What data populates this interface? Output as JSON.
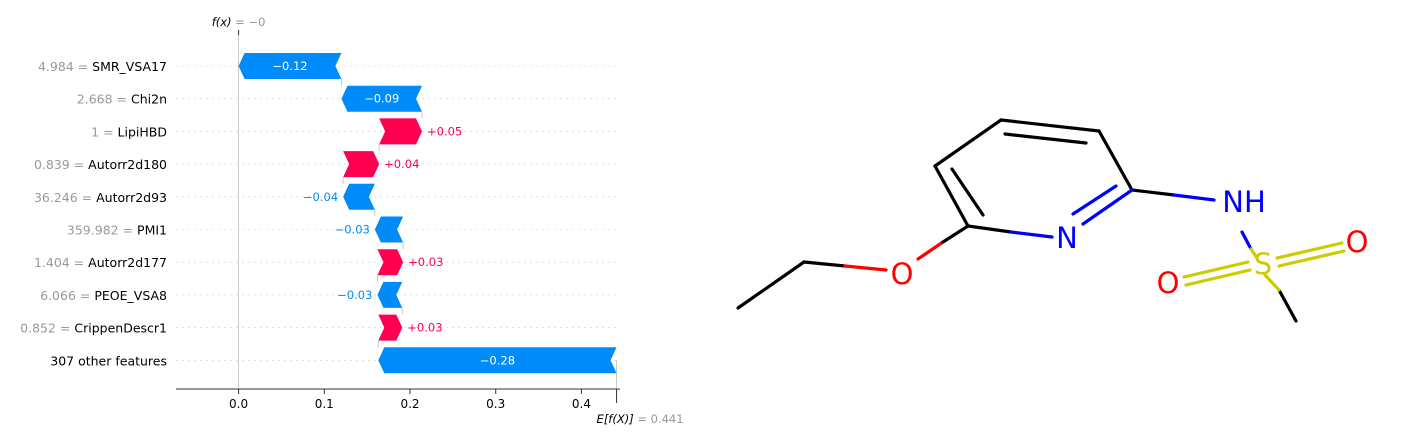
{
  "chart_data": {
    "type": "bar",
    "subtype": "shap-waterfall",
    "top_label": {
      "prefix": "f(x)",
      "suffix": " = −0"
    },
    "bottom_label": {
      "prefix": "E[f(X)]",
      "suffix": " = 0.441"
    },
    "fx": 0.0,
    "base_value": 0.441,
    "xlim": [
      -0.073,
      0.445
    ],
    "xticks": [
      0.0,
      0.1,
      0.2,
      0.3,
      0.4
    ],
    "xtick_labels": [
      "0.0",
      "0.1",
      "0.2",
      "0.3",
      "0.4"
    ],
    "features": [
      {
        "value_text": "4.984",
        "name": "SMR_VSA17",
        "shap": -0.12,
        "label": "−0.12",
        "start": 0.12,
        "end": 0.0
      },
      {
        "value_text": "2.668",
        "name": "Chi2n",
        "shap": -0.09,
        "label": "−0.09",
        "start": 0.214,
        "end": 0.12
      },
      {
        "value_text": "1",
        "name": "LipiHBD",
        "shap": 0.05,
        "label": "+0.05",
        "start": 0.164,
        "end": 0.214
      },
      {
        "value_text": "0.839",
        "name": "Autorr2d180",
        "shap": 0.04,
        "label": "+0.04",
        "start": 0.122,
        "end": 0.164
      },
      {
        "value_text": "36.246",
        "name": "Autorr2d93",
        "shap": -0.04,
        "label": "−0.04",
        "start": 0.159,
        "end": 0.122
      },
      {
        "value_text": "359.982",
        "name": "PMI1",
        "shap": -0.03,
        "label": "−0.03",
        "start": 0.192,
        "end": 0.159
      },
      {
        "value_text": "1.404",
        "name": "Autorr2d177",
        "shap": 0.03,
        "label": "+0.03",
        "start": 0.162,
        "end": 0.192
      },
      {
        "value_text": "6.066",
        "name": "PEOE_VSA8",
        "shap": -0.03,
        "label": "−0.03",
        "start": 0.191,
        "end": 0.162
      },
      {
        "value_text": "0.852",
        "name": "CrippenDescr1",
        "shap": 0.03,
        "label": "+0.03",
        "start": 0.163,
        "end": 0.191
      },
      {
        "value_text": "",
        "name": "307 other features",
        "shap": -0.28,
        "label": "−0.28",
        "start": 0.441,
        "end": 0.163
      }
    ],
    "colors": {
      "positive": "#ff0051",
      "negative": "#008bfb"
    }
  },
  "molecule": {
    "labels": {
      "nitrogen": "N",
      "nh": "NH",
      "oxygen_ether": "O",
      "sulfur": "S",
      "oxygen_a": "O",
      "oxygen_b": "O"
    },
    "colors": {
      "carbon": "#000000",
      "nitrogen": "#0000ff",
      "oxygen": "#ff0000",
      "sulfur": "#cccc00"
    }
  }
}
